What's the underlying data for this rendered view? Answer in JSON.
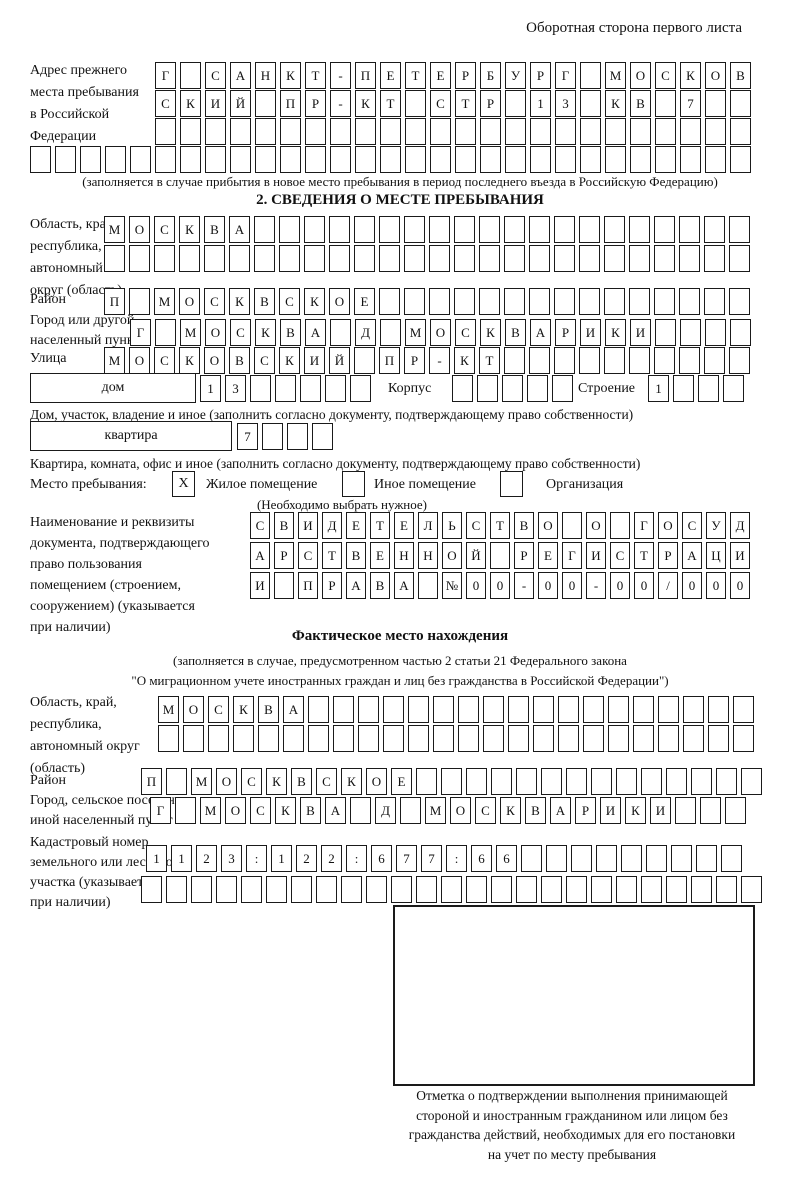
{
  "header": {
    "note": "Оборотная сторона первого листа"
  },
  "prev_address": {
    "label_lines": [
      "Адрес прежнего",
      "места пребывания",
      "в Российской",
      "Федерации"
    ],
    "footnote": "(заполняется в случае прибытия в новое место пребывания в период последнего въезда в Российскую Федерацию)"
  },
  "section2": {
    "title": "2. СВЕДЕНИЯ О МЕСТЕ ПРЕБЫВАНИЯ",
    "region_label_lines": [
      "Область, край,",
      "республика,",
      "автономный",
      "округ (область)"
    ],
    "district_label": "Район",
    "city_label_lines": [
      "Город или другой",
      "населенный пункт"
    ],
    "street_label": "Улица",
    "house_label": "дом",
    "korpus_label": "Корпус",
    "stroenie_label": "Строение",
    "house_footnote": "Дом, участок, владение и иное (заполнить согласно документу, подтверждающему право собственности)",
    "apartment_label": "квартира",
    "apartment_footnote": "Квартира, комната, офис и иное (заполнить согласно документу, подтверждающему право собственности)",
    "stay_label": "Место пребывания:",
    "stay_options": [
      "Жилое помещение",
      "Иное помещение",
      "Организация"
    ],
    "stay_checkboxes": {
      "residential": "X",
      "other": "",
      "organization": ""
    },
    "stay_note": "(Необходимо выбрать нужное)",
    "doc_label_lines": [
      "Наименование и реквизиты",
      "документа, подтверждающего",
      "право пользования",
      "помещением (строением,",
      "сооружением) (указывается",
      "при наличии)"
    ]
  },
  "actual_location": {
    "title": "Фактическое место нахождения",
    "note_lines": [
      "(заполняется в случае, предусмотренном частью 2 статьи 21 Федерального закона",
      "\"О миграционном учете иностранных граждан и лиц без гражданства в Российской Федерации\")"
    ],
    "region_label_lines": [
      "Область, край,",
      "республика,",
      "автономный округ",
      "(область)"
    ],
    "district_label": "Район",
    "city_label_lines": [
      "Город, сельское поселение,",
      "иной населенный пункт"
    ],
    "cadastre_label_lines": [
      "Кадастровый номер",
      "земельного или лесного",
      "участка (указывается",
      "при наличии)"
    ]
  },
  "stamp": {
    "caption_lines": [
      "Отметка о подтверждении выполнения принимающей",
      "стороной и иностранным гражданином или лицом без",
      "гражданства действий, необходимых для его постановки",
      "на учет по месту пребывания"
    ]
  },
  "grids": {
    "prev_row1": {
      "count": 24,
      "cells": [
        "Г",
        "",
        "С",
        "А",
        "Н",
        "К",
        "Т",
        "-",
        "П",
        "Е",
        "Т",
        "Е",
        "Р",
        "Б",
        "У",
        "Р",
        "Г",
        "",
        "М",
        "О",
        "С",
        "К",
        "О",
        "В"
      ]
    },
    "prev_row2": {
      "count": 24,
      "cells": [
        "С",
        "К",
        "И",
        "Й",
        "",
        "П",
        "Р",
        "-",
        "К",
        "Т",
        "",
        "С",
        "Т",
        "Р",
        "",
        "1",
        "3",
        "",
        "К",
        "В",
        "",
        "7"
      ]
    },
    "prev_row3": {
      "count": 24,
      "cells": []
    },
    "prev_row4": {
      "count": 29,
      "cells": []
    },
    "region1_row1": {
      "count": 26,
      "cells": [
        "М",
        "О",
        "С",
        "К",
        "В",
        "А"
      ]
    },
    "region1_row2": {
      "count": 26,
      "cells": []
    },
    "district1": {
      "count": 26,
      "cells": [
        "П",
        "",
        "М",
        "О",
        "С",
        "К",
        "В",
        "С",
        "К",
        "О",
        "Е"
      ]
    },
    "city1": {
      "count": 25,
      "cells": [
        "Г",
        "",
        "М",
        "О",
        "С",
        "К",
        "В",
        "А",
        "",
        "Д",
        "",
        "М",
        "О",
        "С",
        "К",
        "В",
        "А",
        "Р",
        "И",
        "К",
        "И"
      ]
    },
    "street": {
      "count": 26,
      "cells": [
        "М",
        "О",
        "С",
        "К",
        "О",
        "В",
        "С",
        "К",
        "И",
        "Й",
        "",
        "П",
        "Р",
        "-",
        "К",
        "Т"
      ]
    },
    "house": {
      "count": 7,
      "cells": [
        "1",
        "3"
      ]
    },
    "korpus": {
      "count": 5,
      "cells": []
    },
    "stroenie": {
      "count": 4,
      "cells": [
        "1"
      ]
    },
    "apartment": {
      "count": 4,
      "cells": [
        "7"
      ]
    },
    "doc_row1": {
      "count": 21,
      "cells": [
        "С",
        "В",
        "И",
        "Д",
        "Е",
        "Т",
        "Е",
        "Л",
        "Ь",
        "С",
        "Т",
        "В",
        "О",
        "",
        "О",
        "",
        "Г",
        "О",
        "С",
        "У",
        "Д"
      ]
    },
    "doc_row2": {
      "count": 21,
      "cells": [
        "А",
        "Р",
        "С",
        "Т",
        "В",
        "Е",
        "Н",
        "Н",
        "О",
        "Й",
        "",
        "Р",
        "Е",
        "Г",
        "И",
        "С",
        "Т",
        "Р",
        "А",
        "Ц",
        "И"
      ]
    },
    "doc_row3": {
      "count": 21,
      "cells": [
        "И",
        "",
        "П",
        "Р",
        "А",
        "В",
        "А",
        "",
        "№",
        "0",
        "0",
        "-",
        "0",
        "0",
        "-",
        "0",
        "0",
        "/",
        "0",
        "0",
        "0"
      ]
    },
    "region2_row1": {
      "count": 24,
      "cells": [
        "М",
        "О",
        "С",
        "К",
        "В",
        "А"
      ]
    },
    "region2_row2": {
      "count": 24,
      "cells": []
    },
    "district2": {
      "count": 25,
      "cells": [
        "П",
        "",
        "М",
        "О",
        "С",
        "К",
        "В",
        "С",
        "К",
        "О",
        "Е"
      ]
    },
    "city2": {
      "count": 24,
      "cells": [
        "Г",
        "",
        "М",
        "О",
        "С",
        "К",
        "В",
        "А",
        "",
        "Д",
        "",
        "М",
        "О",
        "С",
        "К",
        "В",
        "А",
        "Р",
        "И",
        "К",
        "И"
      ]
    },
    "cadastre_row1": {
      "count": 24,
      "cells": [
        "1",
        "1",
        "2",
        "3",
        ":",
        "1",
        "2",
        "2",
        ":",
        "6",
        "7",
        "7",
        ":",
        "6",
        "6"
      ]
    },
    "cadastre_row2": {
      "count": 25,
      "cells": []
    }
  }
}
